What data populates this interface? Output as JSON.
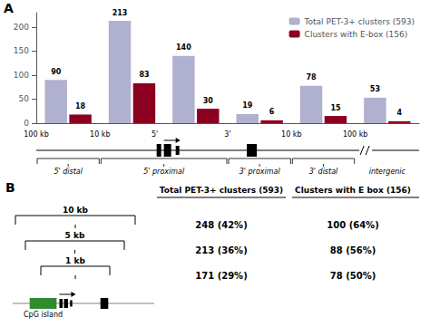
{
  "chart_data": {
    "type": "bar",
    "categories": [
      null,
      null,
      null,
      null,
      null,
      null
    ],
    "series": [
      {
        "name": "Total PET-3+ clusters (593)",
        "color": "#b0b0d0",
        "values": [
          90,
          213,
          140,
          19,
          78,
          53
        ]
      },
      {
        "name": "Clusters with E-box (156)",
        "color": "#8b0020",
        "values": [
          18,
          83,
          30,
          6,
          15,
          4
        ]
      }
    ],
    "ylim": [
      0,
      230
    ],
    "yticks": [
      0,
      50,
      100,
      150,
      200
    ],
    "grid": false,
    "legend": "upper right",
    "data_labels": true,
    "tick_labels": "y",
    "annotations": [
      "A",
      "100 kb",
      "10 kb",
      "5'",
      "3'",
      "10 kb",
      "100 kb",
      "5' distal",
      "5' proximal",
      "3' proximal",
      "3' distal",
      "intergenic",
      "B",
      "Total PET-3+ clusters (593)",
      "Clusters with E box (156)",
      "10 kb",
      "5 kb",
      "1 kb",
      "248 (42%)",
      "100 (64%)",
      "213 (36%)",
      "88 (56%)",
      "171 (29%)",
      "78 (50%)",
      "CpG island"
    ]
  }
}
